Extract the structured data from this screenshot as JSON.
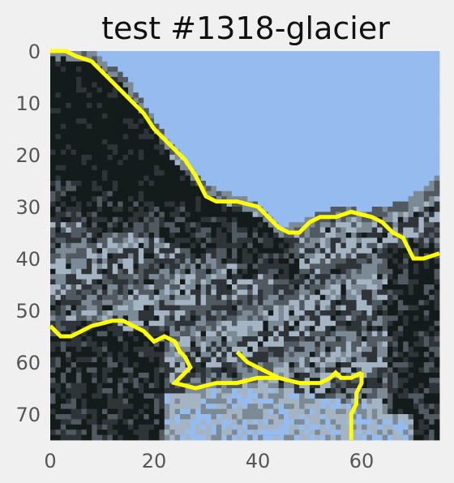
{
  "title": "test #1318-glacier",
  "image": {
    "width": 75,
    "height": 75,
    "palette": {
      "sky": "#95bbef",
      "dark": "#141b1b",
      "gray_dark": "#2e3437",
      "gray_mid": "#515a60",
      "gray_light": "#7c8a96",
      "gray_pale": "#a5b4c2",
      "figure_bg": "#f0f0f0"
    }
  },
  "contour": {
    "color": "#ffff00"
  },
  "axes": {
    "x_ticks": [
      "0",
      "20",
      "40",
      "60"
    ],
    "y_ticks": [
      "0",
      "10",
      "20",
      "30",
      "40",
      "50",
      "60",
      "70"
    ]
  }
}
